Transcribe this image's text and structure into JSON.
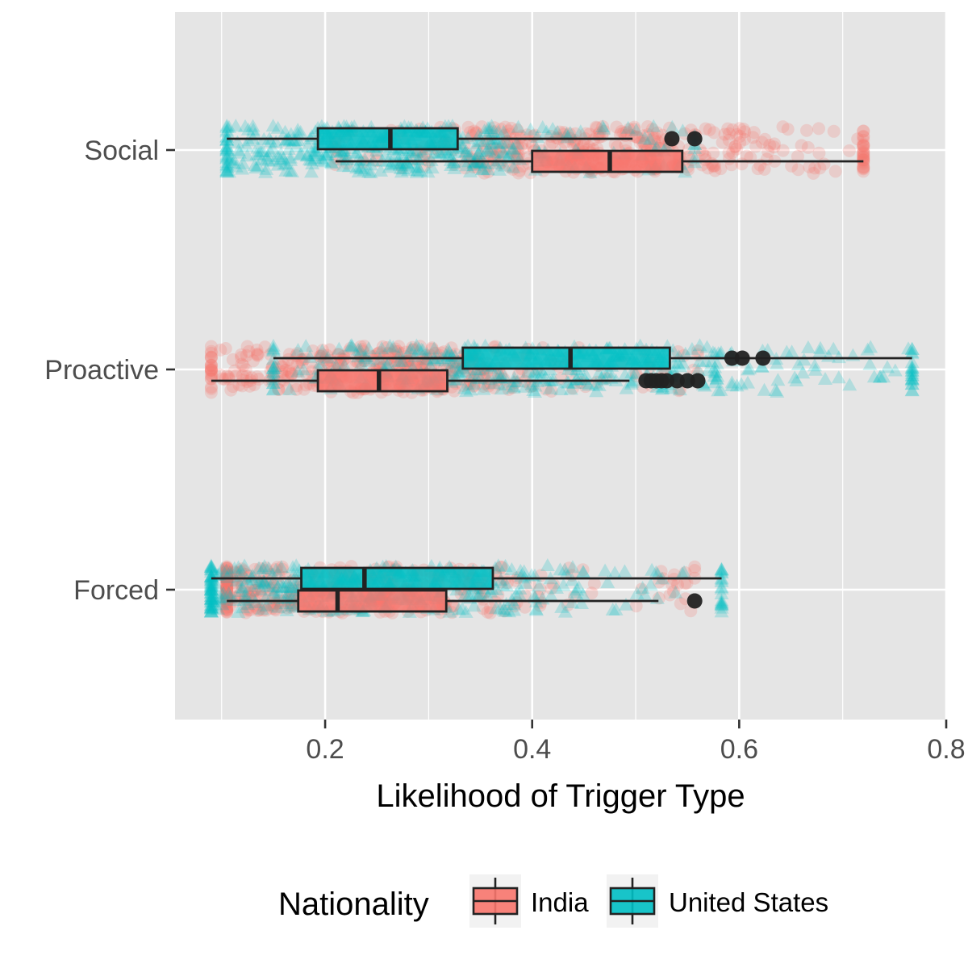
{
  "colors": {
    "panel_bg": "#e5e5e5",
    "grid": "#ffffff",
    "box_edge": "#222222",
    "India": "#f8766d",
    "United States": "#00bfc4"
  },
  "chart_data": {
    "type": "boxplot",
    "orientation": "horizontal",
    "title": "",
    "xlabel": "Likelihood of Trigger Type",
    "ylabel": "",
    "xlim": [
      0.055,
      0.8
    ],
    "xticks": [
      0.2,
      0.4,
      0.6,
      0.8
    ],
    "xtick_labels": [
      "0.2",
      "0.4",
      "0.6",
      "0.8"
    ],
    "categories": [
      "Social",
      "Proactive",
      "Forced"
    ],
    "grid": true,
    "jittered_points": true,
    "legend": {
      "title": "Nationality",
      "position": "bottom",
      "entries": [
        "India",
        "United States"
      ]
    },
    "series": [
      {
        "name": "India",
        "point_shape": "circle",
        "boxes": [
          {
            "category": "Social",
            "whisker_low": 0.21,
            "q1": 0.4,
            "median": 0.475,
            "q3": 0.545,
            "whisker_high": 0.72,
            "outliers": [],
            "points_range": [
              0.21,
              0.72
            ]
          },
          {
            "category": "Proactive",
            "whisker_low": 0.09,
            "q1": 0.193,
            "median": 0.252,
            "q3": 0.318,
            "whisker_high": 0.494,
            "outliers": [
              0.51,
              0.515,
              0.52,
              0.525,
              0.53,
              0.54,
              0.55,
              0.56
            ],
            "points_range": [
              0.09,
              0.56
            ]
          },
          {
            "category": "Forced",
            "whisker_low": 0.105,
            "q1": 0.174,
            "median": 0.212,
            "q3": 0.317,
            "whisker_high": 0.522,
            "outliers": [
              0.557
            ],
            "points_range": [
              0.105,
              0.557
            ]
          }
        ]
      },
      {
        "name": "United States",
        "point_shape": "triangle",
        "boxes": [
          {
            "category": "Social",
            "whisker_low": 0.105,
            "q1": 0.193,
            "median": 0.263,
            "q3": 0.328,
            "whisker_high": 0.497,
            "outliers": [
              0.535,
              0.557
            ],
            "points_range": [
              0.105,
              0.557
            ]
          },
          {
            "category": "Proactive",
            "whisker_low": 0.15,
            "q1": 0.333,
            "median": 0.437,
            "q3": 0.533,
            "whisker_high": 0.767,
            "outliers": [
              0.593,
              0.603,
              0.623
            ],
            "points_range": [
              0.15,
              0.767
            ]
          },
          {
            "category": "Forced",
            "whisker_low": 0.09,
            "q1": 0.177,
            "median": 0.238,
            "q3": 0.362,
            "whisker_high": 0.583,
            "outliers": [],
            "points_range": [
              0.09,
              0.583
            ]
          }
        ]
      }
    ]
  }
}
